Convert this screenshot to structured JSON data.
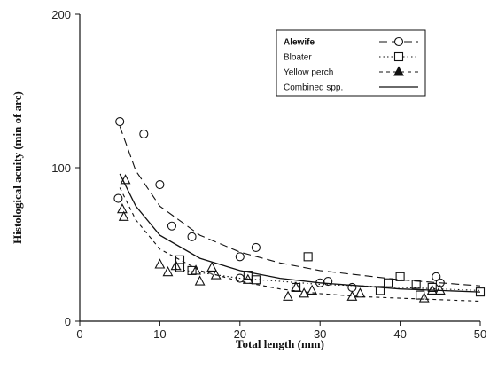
{
  "chart_data": {
    "type": "scatter",
    "xlabel": "Total length (mm)",
    "ylabel": "Histological acuity (min of arc)",
    "xlim": [
      0,
      50
    ],
    "ylim": [
      0,
      200
    ],
    "x_ticks": [
      "0",
      "10",
      "20",
      "30",
      "40",
      "50"
    ],
    "y_ticks": [
      "0",
      "100",
      "200"
    ],
    "legend_position": "top-right",
    "series": [
      {
        "name": "Alewife",
        "marker": "circle",
        "line_style": "long-dash",
        "points": [
          [
            5,
            130
          ],
          [
            4.8,
            80
          ],
          [
            8,
            122
          ],
          [
            10,
            89
          ],
          [
            11.5,
            62
          ],
          [
            14,
            55
          ],
          [
            20,
            42
          ],
          [
            22,
            48
          ],
          [
            30,
            25
          ],
          [
            31,
            26
          ],
          [
            34,
            22
          ],
          [
            44.5,
            29
          ],
          [
            45,
            25
          ],
          [
            20,
            28
          ]
        ],
        "curve": [
          [
            5,
            127
          ],
          [
            7,
            98
          ],
          [
            10,
            75
          ],
          [
            15,
            56
          ],
          [
            20,
            45
          ],
          [
            25,
            38
          ],
          [
            30,
            33
          ],
          [
            35,
            30
          ],
          [
            40,
            27
          ],
          [
            45,
            25
          ],
          [
            50,
            23
          ]
        ]
      },
      {
        "name": "Bloater",
        "marker": "square",
        "line_style": "dotted",
        "points": [
          [
            12.5,
            35
          ],
          [
            12.5,
            40
          ],
          [
            14,
            33
          ],
          [
            21,
            30
          ],
          [
            22,
            27
          ],
          [
            27,
            22
          ],
          [
            28.5,
            42
          ],
          [
            37.5,
            20
          ],
          [
            38.5,
            25
          ],
          [
            40,
            29
          ],
          [
            42,
            24
          ],
          [
            42.5,
            17
          ],
          [
            44,
            22
          ],
          [
            50,
            19
          ]
        ],
        "curve": [
          [
            12,
            34
          ],
          [
            20,
            28
          ],
          [
            25,
            26
          ],
          [
            30,
            24
          ],
          [
            35,
            23
          ],
          [
            40,
            22
          ],
          [
            45,
            21
          ],
          [
            50,
            20
          ]
        ]
      },
      {
        "name": "Yellow perch",
        "marker": "triangle",
        "line_style": "short-dash",
        "points": [
          [
            5.3,
            73
          ],
          [
            5.5,
            68
          ],
          [
            5.7,
            92
          ],
          [
            10,
            37
          ],
          [
            11,
            32
          ],
          [
            12,
            36
          ],
          [
            14.5,
            33
          ],
          [
            15,
            26
          ],
          [
            16.5,
            35
          ],
          [
            17,
            30
          ],
          [
            21,
            27
          ],
          [
            26,
            16
          ],
          [
            27,
            22
          ],
          [
            28,
            18
          ],
          [
            29,
            20
          ],
          [
            34,
            16
          ],
          [
            35,
            18
          ],
          [
            43,
            15
          ],
          [
            44,
            20
          ],
          [
            45,
            20
          ]
        ],
        "curve": [
          [
            5,
            87
          ],
          [
            7,
            66
          ],
          [
            10,
            47
          ],
          [
            15,
            33
          ],
          [
            20,
            26
          ],
          [
            25,
            21
          ],
          [
            30,
            18
          ],
          [
            35,
            16
          ],
          [
            40,
            15
          ],
          [
            45,
            14
          ],
          [
            50,
            13
          ]
        ]
      },
      {
        "name": "Combined spp.",
        "marker": "none",
        "line_style": "solid",
        "points": [],
        "curve": [
          [
            5,
            96
          ],
          [
            7,
            75
          ],
          [
            10,
            56
          ],
          [
            15,
            41
          ],
          [
            20,
            33
          ],
          [
            25,
            28
          ],
          [
            30,
            25
          ],
          [
            35,
            23
          ],
          [
            40,
            21
          ],
          [
            45,
            20
          ],
          [
            50,
            19
          ]
        ]
      }
    ]
  }
}
